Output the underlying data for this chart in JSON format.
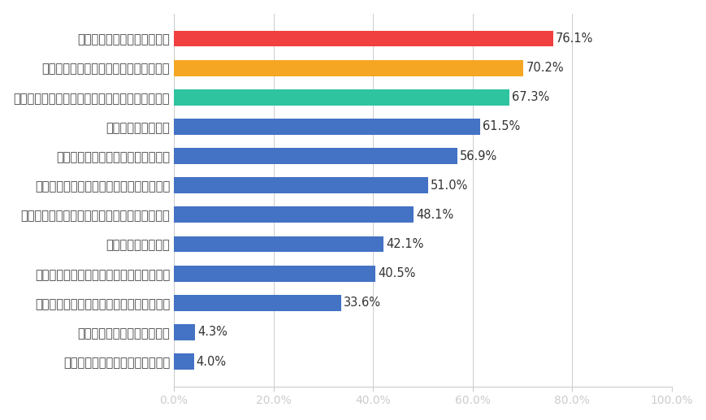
{
  "categories": [
    "他人に対して思いやりを持つ",
    "人との争いを避け、話し合いで解決する",
    "人に迷惑をかけず、人の役に立つことを心がける",
    "環境保護に協力する",
    "みんなと仲良くし、いじめをなくす",
    "募金やボランティアなどの活動に参加する",
    "ゴミ拾いやリサイクルなど、できることをやる",
    "平和運動に参加する",
    "選挙の投票に行くなど、政治に関心を持つ",
    "平和のための自分のプロジェクトを始める",
    "わからないけど、何かしたい",
    "その他（どれも当てはまらない）"
  ],
  "values": [
    76.1,
    70.2,
    67.3,
    61.5,
    56.9,
    51.0,
    48.1,
    42.1,
    40.5,
    33.6,
    4.3,
    4.0
  ],
  "bar_colors": [
    "#f04040",
    "#f5a623",
    "#2ec4a0",
    "#4472c4",
    "#4472c4",
    "#4472c4",
    "#4472c4",
    "#4472c4",
    "#4472c4",
    "#4472c4",
    "#4472c4",
    "#4472c4"
  ],
  "xlim": [
    0,
    100
  ],
  "xtick_values": [
    0,
    20,
    40,
    60,
    80,
    100
  ],
  "xtick_labels": [
    "0.0%",
    "20.0%",
    "40.0%",
    "60.0%",
    "80.0%",
    "100.0%"
  ],
  "background_color": "#ffffff",
  "bar_height": 0.55,
  "label_fontsize": 10.5,
  "value_fontsize": 10.5
}
